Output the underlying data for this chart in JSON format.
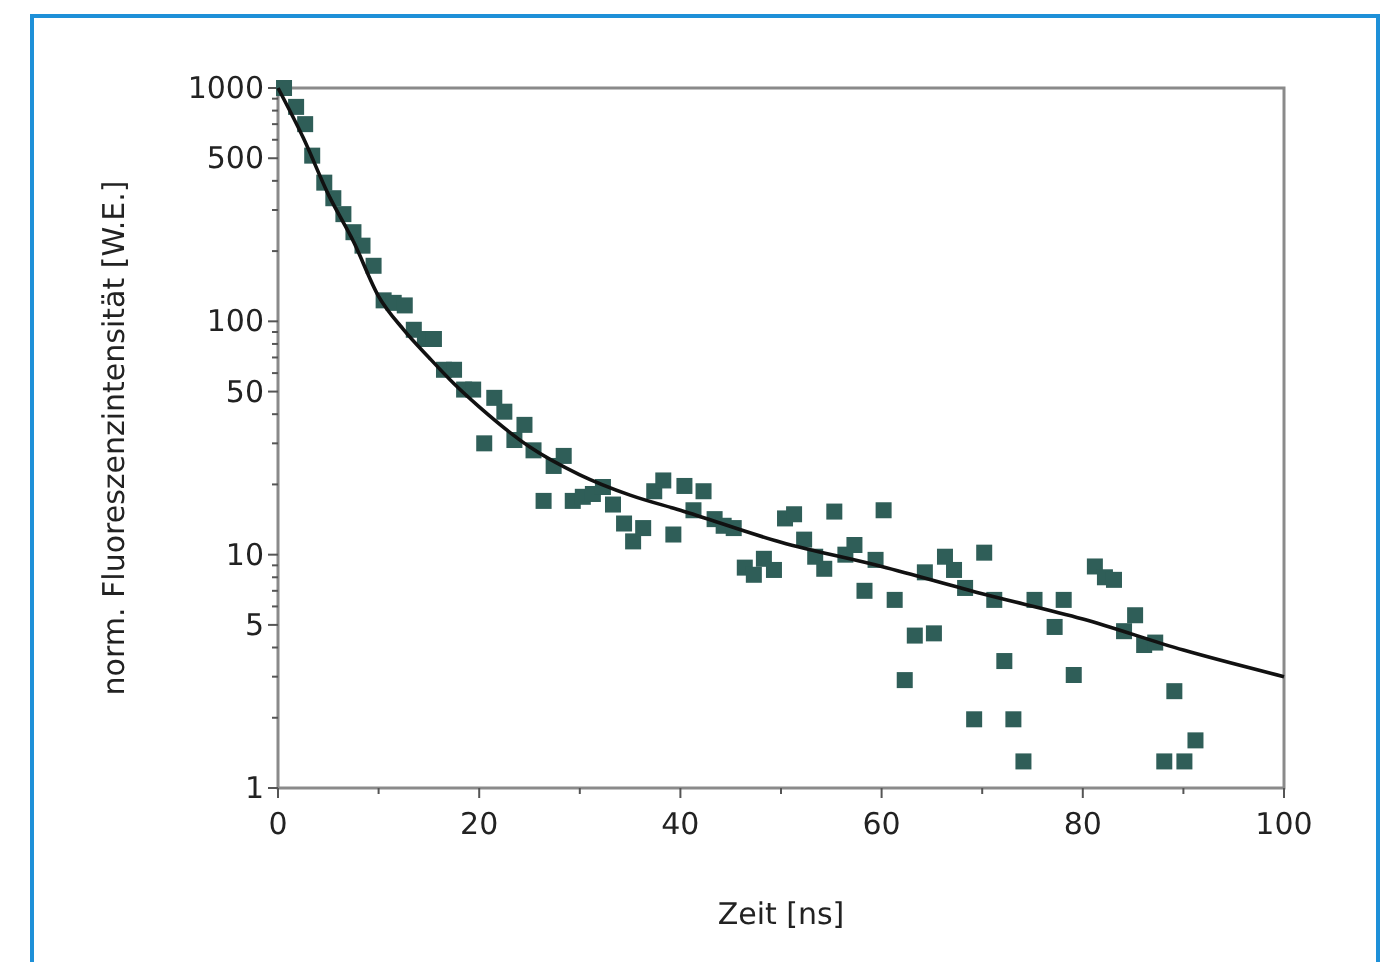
{
  "chart_data": {
    "type": "scatter",
    "xlabel": "Zeit [ns]",
    "ylabel": "norm. Fluoreszenzintensität [W.E.]",
    "log": "y",
    "grid": false,
    "marker": "square",
    "xlim": [
      0,
      100
    ],
    "xticks": [
      0,
      {
        "value": 10,
        "label": null
      },
      20,
      {
        "value": 30,
        "label": null
      },
      40,
      {
        "value": 50,
        "label": null
      },
      60,
      {
        "value": 70,
        "label": null
      },
      80,
      {
        "value": 90,
        "label": null
      },
      100
    ],
    "ylim": [
      1,
      1000
    ],
    "yticks": [
      1,
      {
        "value": 2,
        "label": null
      },
      {
        "value": 3,
        "label": null
      },
      {
        "value": 4,
        "label": null
      },
      5,
      {
        "value": 6,
        "label": null
      },
      {
        "value": 7,
        "label": null
      },
      {
        "value": 8,
        "label": null
      },
      {
        "value": 9,
        "label": null
      },
      10,
      {
        "value": 20,
        "label": null
      },
      {
        "value": 30,
        "label": null
      },
      {
        "value": 40,
        "label": null
      },
      50,
      {
        "value": 60,
        "label": null
      },
      {
        "value": 70,
        "label": null
      },
      {
        "value": 80,
        "label": null
      },
      {
        "value": 90,
        "label": null
      },
      100,
      {
        "value": 200,
        "label": null
      },
      {
        "value": 300,
        "label": null
      },
      {
        "value": 400,
        "label": null
      },
      500,
      {
        "value": 600,
        "label": null
      },
      {
        "value": 700,
        "label": null
      },
      {
        "value": 800,
        "label": null
      },
      {
        "value": 900,
        "label": null
      },
      1000
    ],
    "series": [
      {
        "color": "#2f5e58",
        "x": [
          0.6,
          1.8,
          2.7,
          3.4,
          4.6,
          5.5,
          6.5,
          7.5,
          8.4,
          9.5,
          10.5,
          11.5,
          12.6,
          13.5,
          14.6,
          15.5,
          16.5,
          17.5,
          18.5,
          19.4,
          20.5,
          21.5,
          22.5,
          23.5,
          24.5,
          25.4,
          26.4,
          27.4,
          28.4,
          29.3,
          30.3,
          31.3,
          32.3,
          33.3,
          34.4,
          35.3,
          36.3,
          37.4,
          38.3,
          39.3,
          40.4,
          41.3,
          42.3,
          43.4,
          44.3,
          45.3,
          46.4,
          47.3,
          48.3,
          49.3,
          50.4,
          51.3,
          52.3,
          53.4,
          54.3,
          55.3,
          56.4,
          57.3,
          58.3,
          59.4,
          60.2,
          61.3,
          62.3,
          63.3,
          64.3,
          65.2,
          66.3,
          67.2,
          68.3,
          69.2,
          70.2,
          71.2,
          72.2,
          73.1,
          74.1,
          75.2,
          77.2,
          78.1,
          79.1,
          81.2,
          82.2,
          83.1,
          84.1,
          85.2,
          86.1,
          87.2,
          88.1,
          89.1,
          90.1,
          91.2
        ],
        "values": [
          1000,
          830,
          700,
          513,
          393,
          337,
          288,
          241,
          211,
          173,
          123,
          120,
          117,
          92,
          84,
          84,
          62,
          62,
          51,
          51,
          30,
          47,
          41,
          31,
          36,
          28,
          17,
          24,
          26.5,
          17,
          17.7,
          18.2,
          19.5,
          16.4,
          13.6,
          11.4,
          13,
          18.7,
          20.8,
          12.2,
          19.7,
          15.5,
          18.7,
          14.2,
          13.3,
          13,
          8.8,
          8.2,
          9.6,
          8.6,
          14.3,
          14.9,
          11.6,
          9.8,
          8.7,
          15.3,
          10,
          11,
          7,
          9.5,
          15.5,
          6.4,
          2.9,
          4.5,
          8.4,
          4.6,
          9.8,
          8.6,
          7.2,
          1.97,
          10.2,
          6.4,
          3.5,
          1.97,
          1.3,
          6.4,
          4.9,
          6.4,
          3.05,
          8.9,
          8,
          7.8,
          4.7,
          5.5,
          4.1,
          4.2,
          1.3,
          2.6,
          1.3,
          1.6
        ]
      },
      {
        "type": "line",
        "color": "#111111",
        "line_style": "solid",
        "marker": "none",
        "x": [
          0,
          2.5,
          5,
          7.5,
          10,
          12.5,
          15,
          17.5,
          20,
          25,
          30,
          35,
          40,
          50,
          60,
          70,
          80,
          90,
          100
        ],
        "values": [
          1000,
          613,
          350,
          220,
          128,
          92,
          70,
          54,
          43,
          29,
          22,
          18,
          15.5,
          11.3,
          8.9,
          6.8,
          5.3,
          3.9,
          3
        ]
      }
    ]
  }
}
